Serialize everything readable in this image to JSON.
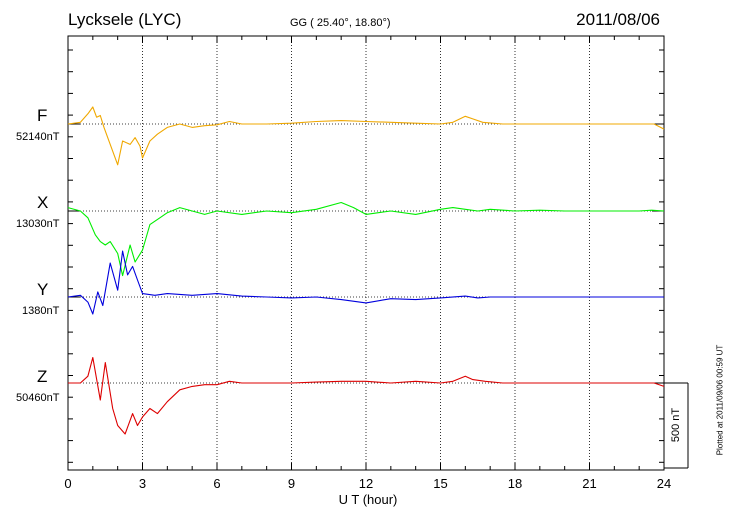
{
  "header": {
    "station": "Lycksele (LYC)",
    "coords": "GG ( 25.40°,  18.80°)",
    "date": "2011/08/06"
  },
  "plotted_note": "Plotted at 2011/09/06 00:59 UT",
  "scale_label": "500 nT",
  "chart_data": {
    "type": "line",
    "xlabel": "U T (hour)",
    "xlim": [
      0,
      24
    ],
    "xticks": [
      "0",
      "3",
      "6",
      "9",
      "12",
      "15",
      "18",
      "21",
      "24"
    ],
    "y_units": "nT",
    "scale_bar_nT": 500,
    "grid": true,
    "series": [
      {
        "name": "F",
        "baseline": "52140nT",
        "color": "#f0a800",
        "x": [
          0,
          0.5,
          0.8,
          1.0,
          1.15,
          1.3,
          1.45,
          1.6,
          1.8,
          2.0,
          2.2,
          2.5,
          2.7,
          2.9,
          3.0,
          3.3,
          3.6,
          4.0,
          4.5,
          5.0,
          5.5,
          6.0,
          6.5,
          7,
          8,
          9,
          10,
          11,
          12,
          13,
          14,
          15,
          15.5,
          16,
          16.3,
          16.7,
          17.5,
          18.5,
          20,
          21,
          22,
          23,
          23.6,
          24
        ],
        "y": [
          0,
          10,
          60,
          100,
          40,
          50,
          -20,
          -80,
          -160,
          -240,
          -100,
          -120,
          -80,
          -130,
          -200,
          -100,
          -60,
          -20,
          0,
          -20,
          -10,
          -5,
          15,
          0,
          0,
          5,
          15,
          20,
          15,
          10,
          5,
          0,
          10,
          45,
          30,
          10,
          0,
          0,
          0,
          0,
          0,
          0,
          0,
          -30
        ]
      },
      {
        "name": "X",
        "baseline": "13030nT",
        "color": "#00ee00",
        "x": [
          0,
          0.5,
          0.8,
          1.1,
          1.3,
          1.5,
          1.7,
          2.0,
          2.2,
          2.5,
          2.7,
          3.0,
          3.3,
          3.7,
          4.0,
          4.5,
          5.0,
          5.5,
          6.0,
          7,
          8,
          9,
          10,
          11,
          11.5,
          12,
          13,
          14,
          15,
          15.5,
          16,
          16.5,
          17,
          18,
          19,
          20,
          21,
          22,
          23,
          23.5,
          24
        ],
        "y": [
          20,
          0,
          -40,
          -140,
          -180,
          -200,
          -180,
          -250,
          -380,
          -200,
          -300,
          -230,
          -80,
          -40,
          -10,
          20,
          0,
          -20,
          0,
          -20,
          0,
          -10,
          10,
          50,
          20,
          -20,
          0,
          -20,
          10,
          20,
          10,
          0,
          10,
          0,
          5,
          0,
          0,
          0,
          0,
          5,
          0
        ]
      },
      {
        "name": "Y",
        "baseline": "1380nT",
        "color": "#0000dd",
        "x": [
          0,
          0.5,
          0.8,
          1.0,
          1.2,
          1.4,
          1.7,
          2.0,
          2.2,
          2.4,
          2.6,
          2.8,
          3.0,
          3.5,
          4.0,
          5.0,
          6.0,
          7,
          8,
          9,
          10,
          11,
          12,
          13,
          14,
          15,
          16,
          16.5,
          17,
          18,
          19,
          20,
          21,
          22,
          23,
          24
        ],
        "y": [
          0,
          10,
          -30,
          -100,
          30,
          -50,
          200,
          40,
          270,
          130,
          180,
          100,
          20,
          10,
          20,
          10,
          20,
          5,
          0,
          -5,
          0,
          -15,
          -35,
          -10,
          -15,
          -5,
          5,
          -5,
          0,
          0,
          0,
          0,
          0,
          0,
          0,
          0
        ]
      },
      {
        "name": "Z",
        "baseline": "50460nT",
        "color": "#dd0000",
        "x": [
          0,
          0.5,
          0.8,
          1.0,
          1.3,
          1.5,
          1.8,
          2.0,
          2.3,
          2.6,
          2.8,
          3.0,
          3.3,
          3.6,
          4.0,
          4.5,
          5.0,
          5.5,
          6.0,
          6.5,
          7,
          8,
          9,
          10,
          11,
          12,
          13,
          14,
          15,
          15.5,
          16,
          16.3,
          16.8,
          17.5,
          18.5,
          20,
          21,
          22,
          23,
          23.6,
          24
        ],
        "y": [
          0,
          0,
          40,
          150,
          -100,
          120,
          -150,
          -250,
          -300,
          -180,
          -250,
          -200,
          -150,
          -180,
          -110,
          -40,
          -20,
          -10,
          -10,
          10,
          0,
          0,
          0,
          5,
          10,
          10,
          0,
          10,
          0,
          10,
          40,
          20,
          10,
          0,
          0,
          0,
          0,
          0,
          0,
          0,
          -20
        ]
      }
    ]
  }
}
